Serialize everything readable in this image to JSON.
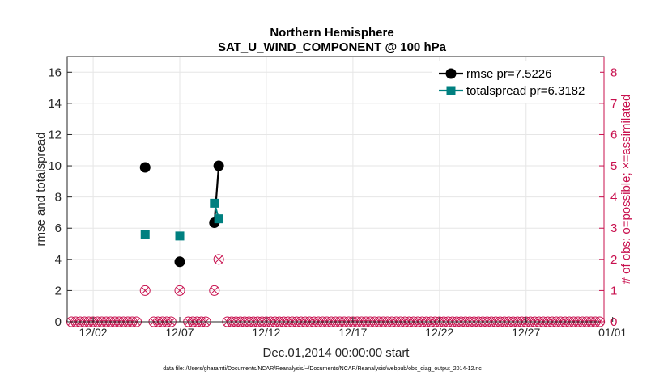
{
  "chart_data": {
    "type": "line",
    "title": "Northern Hemisphere",
    "subtitle": "SAT_U_WIND_COMPONENT @ 100 hPa",
    "xlabel": "Dec.01,2014 00:00:00 start",
    "ylabel": "rmse and totalspread",
    "y2label": "# of obs: o=possible; ×=assimilated",
    "footer": "data file: /Users/gharamti/Documents/NCAR/Reanalysis/~/Documents/NCAR/Reanalysis/webpub/obs_diag_output_2014-12.nc",
    "xlim": [
      0.5,
      31.5
    ],
    "ylim": [
      0,
      17
    ],
    "y2lim": [
      0,
      8.5
    ],
    "x_ticks": [
      2,
      7,
      12,
      17,
      22,
      27,
      32
    ],
    "x_tick_labels": [
      "12/02",
      "12/07",
      "12/12",
      "12/17",
      "12/22",
      "12/27",
      "01/01"
    ],
    "y_ticks": [
      0,
      2,
      4,
      6,
      8,
      10,
      12,
      14,
      16
    ],
    "y_tick_labels": [
      "0",
      "2",
      "4",
      "6",
      "8",
      "10",
      "12",
      "14",
      "16"
    ],
    "y2_ticks": [
      0,
      1,
      2,
      3,
      4,
      5,
      6,
      7,
      8
    ],
    "y2_tick_labels": [
      "0",
      "1",
      "2",
      "3",
      "4",
      "5",
      "6",
      "7",
      "8"
    ],
    "grid": true,
    "legend_position": "top-right",
    "series": [
      {
        "name": "rmse",
        "legend": "rmse pr=7.5226",
        "color": "#000000",
        "marker": "circle",
        "points": [
          [
            5.0,
            9.9
          ],
          [
            7.0,
            3.85
          ],
          [
            9.0,
            6.35
          ],
          [
            9.25,
            10.0
          ]
        ],
        "segments": [
          [
            [
              9.0,
              6.35
            ],
            [
              9.25,
              10.0
            ]
          ]
        ]
      },
      {
        "name": "totalspread",
        "legend": "totalspread pr=6.3182",
        "color": "#008080",
        "marker": "square",
        "points": [
          [
            5.0,
            5.6
          ],
          [
            7.0,
            5.5
          ],
          [
            9.0,
            7.6
          ],
          [
            9.25,
            6.6
          ]
        ],
        "segments": [
          [
            [
              9.0,
              7.6
            ],
            [
              9.25,
              6.6
            ]
          ]
        ]
      }
    ],
    "obs_counts": {
      "color": "#c8104e",
      "possible": [
        [
          5.0,
          1
        ],
        [
          7.0,
          1
        ],
        [
          9.0,
          1
        ],
        [
          9.25,
          2
        ]
      ],
      "assimilated": [
        [
          5.0,
          1
        ],
        [
          7.0,
          1
        ],
        [
          9.0,
          1
        ],
        [
          9.25,
          2
        ]
      ],
      "zero_from": 0.75,
      "zero_to": 31.25,
      "zero_step": 0.25
    }
  }
}
